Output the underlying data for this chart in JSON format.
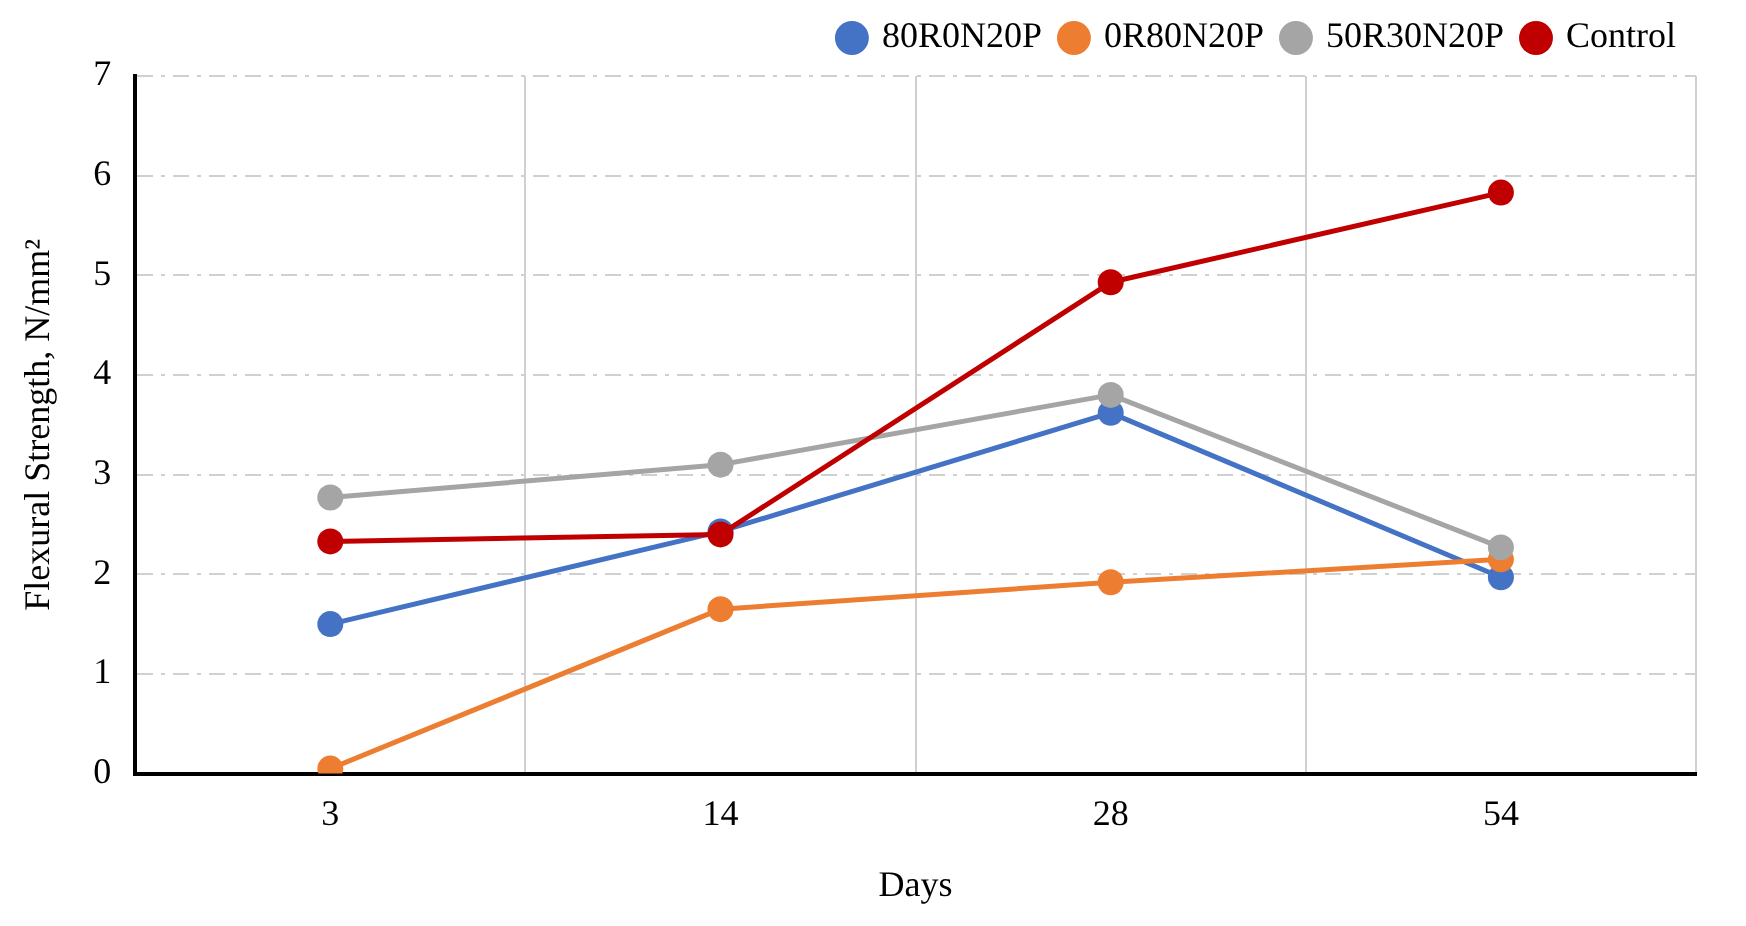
{
  "chart_data": {
    "type": "line",
    "xlabel": "Days",
    "ylabel": "Flexural Strength, N/mm²",
    "categories": [
      "3",
      "14",
      "28",
      "54"
    ],
    "series": [
      {
        "name": "80R0N20P",
        "color": "#4472c4",
        "values": [
          1.5,
          2.43,
          3.62,
          1.97
        ]
      },
      {
        "name": "0R80N20P",
        "color": "#ed7d31",
        "values": [
          0.05,
          1.65,
          1.92,
          2.15
        ]
      },
      {
        "name": "50R30N20P",
        "color": "#a5a5a5",
        "values": [
          2.77,
          3.1,
          3.8,
          2.27
        ]
      },
      {
        "name": "Control",
        "color": "#c00000",
        "values": [
          2.33,
          2.4,
          4.93,
          5.83
        ]
      }
    ],
    "ylim": [
      0,
      7
    ],
    "yticks": [
      0,
      1,
      2,
      3,
      4,
      5,
      6,
      7
    ],
    "grid": true,
    "legend": "top",
    "marker": "circle",
    "line_style": "solid"
  }
}
